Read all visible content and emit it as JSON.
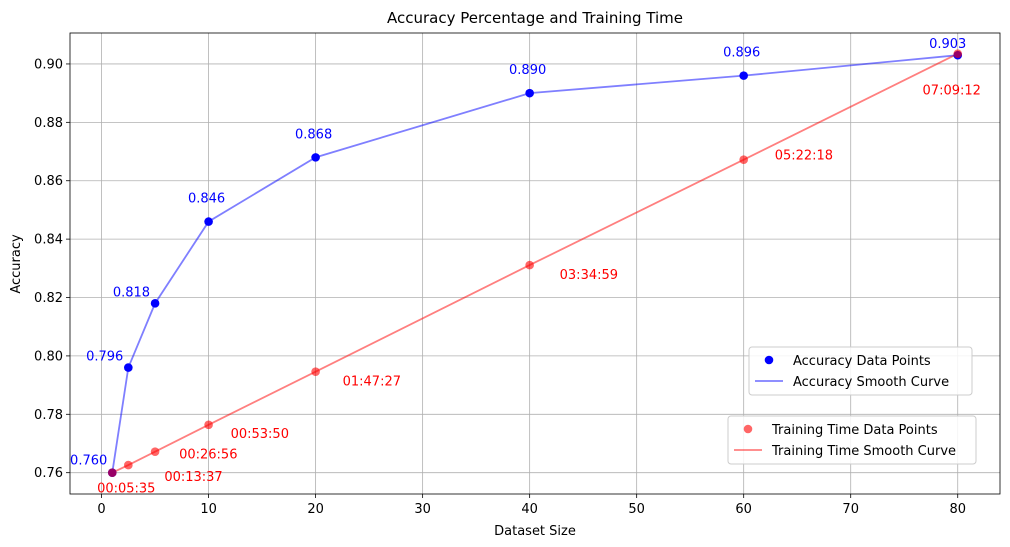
{
  "chart_data": {
    "type": "line",
    "title": "Accuracy Percentage and Training Time",
    "xlabel": "Dataset Size",
    "ylabel": "Accuracy",
    "xlim": [
      -2.95,
      83.95
    ],
    "ylim": [
      0.7527,
      0.9106
    ],
    "xticks": [
      0,
      10,
      20,
      30,
      40,
      50,
      60,
      70,
      80
    ],
    "yticks": [
      0.76,
      0.78,
      0.8,
      0.82,
      0.84,
      0.86,
      0.88,
      0.9
    ],
    "ytick_labels": [
      "0.76",
      "0.78",
      "0.80",
      "0.82",
      "0.84",
      "0.86",
      "0.88",
      "0.90"
    ],
    "grid": true,
    "x": [
      1,
      2.5,
      5,
      10,
      20,
      40,
      60,
      80
    ],
    "series": [
      {
        "name": "Accuracy Data Points",
        "curve_name": "Accuracy Smooth Curve",
        "color": "#0000ff",
        "values": [
          0.76,
          0.796,
          0.818,
          0.846,
          0.868,
          0.89,
          0.896,
          0.903
        ],
        "labels": [
          "0.760",
          "0.796",
          "0.818",
          "0.846",
          "0.868",
          "0.890",
          "0.896",
          "0.903"
        ]
      },
      {
        "name": "Training Time Data Points",
        "curve_name": "Training Time Smooth Curve",
        "color": "#ff0000",
        "values": [
          0.76,
          0.7626,
          0.7672,
          0.7764,
          0.7946,
          0.8311,
          0.8672,
          0.9035
        ],
        "labels": [
          "00:05:35",
          "00:13:37",
          "00:26:56",
          "00:53:50",
          "01:47:27",
          "03:34:59",
          "05:22:18",
          "07:09:12"
        ]
      }
    ],
    "legend": [
      {
        "placement": "center-right",
        "entries": [
          "Accuracy Data Points",
          "Accuracy Smooth Curve"
        ]
      },
      {
        "placement": "lower-right",
        "entries": [
          "Training Time Data Points",
          "Training Time Smooth Curve"
        ]
      }
    ]
  }
}
